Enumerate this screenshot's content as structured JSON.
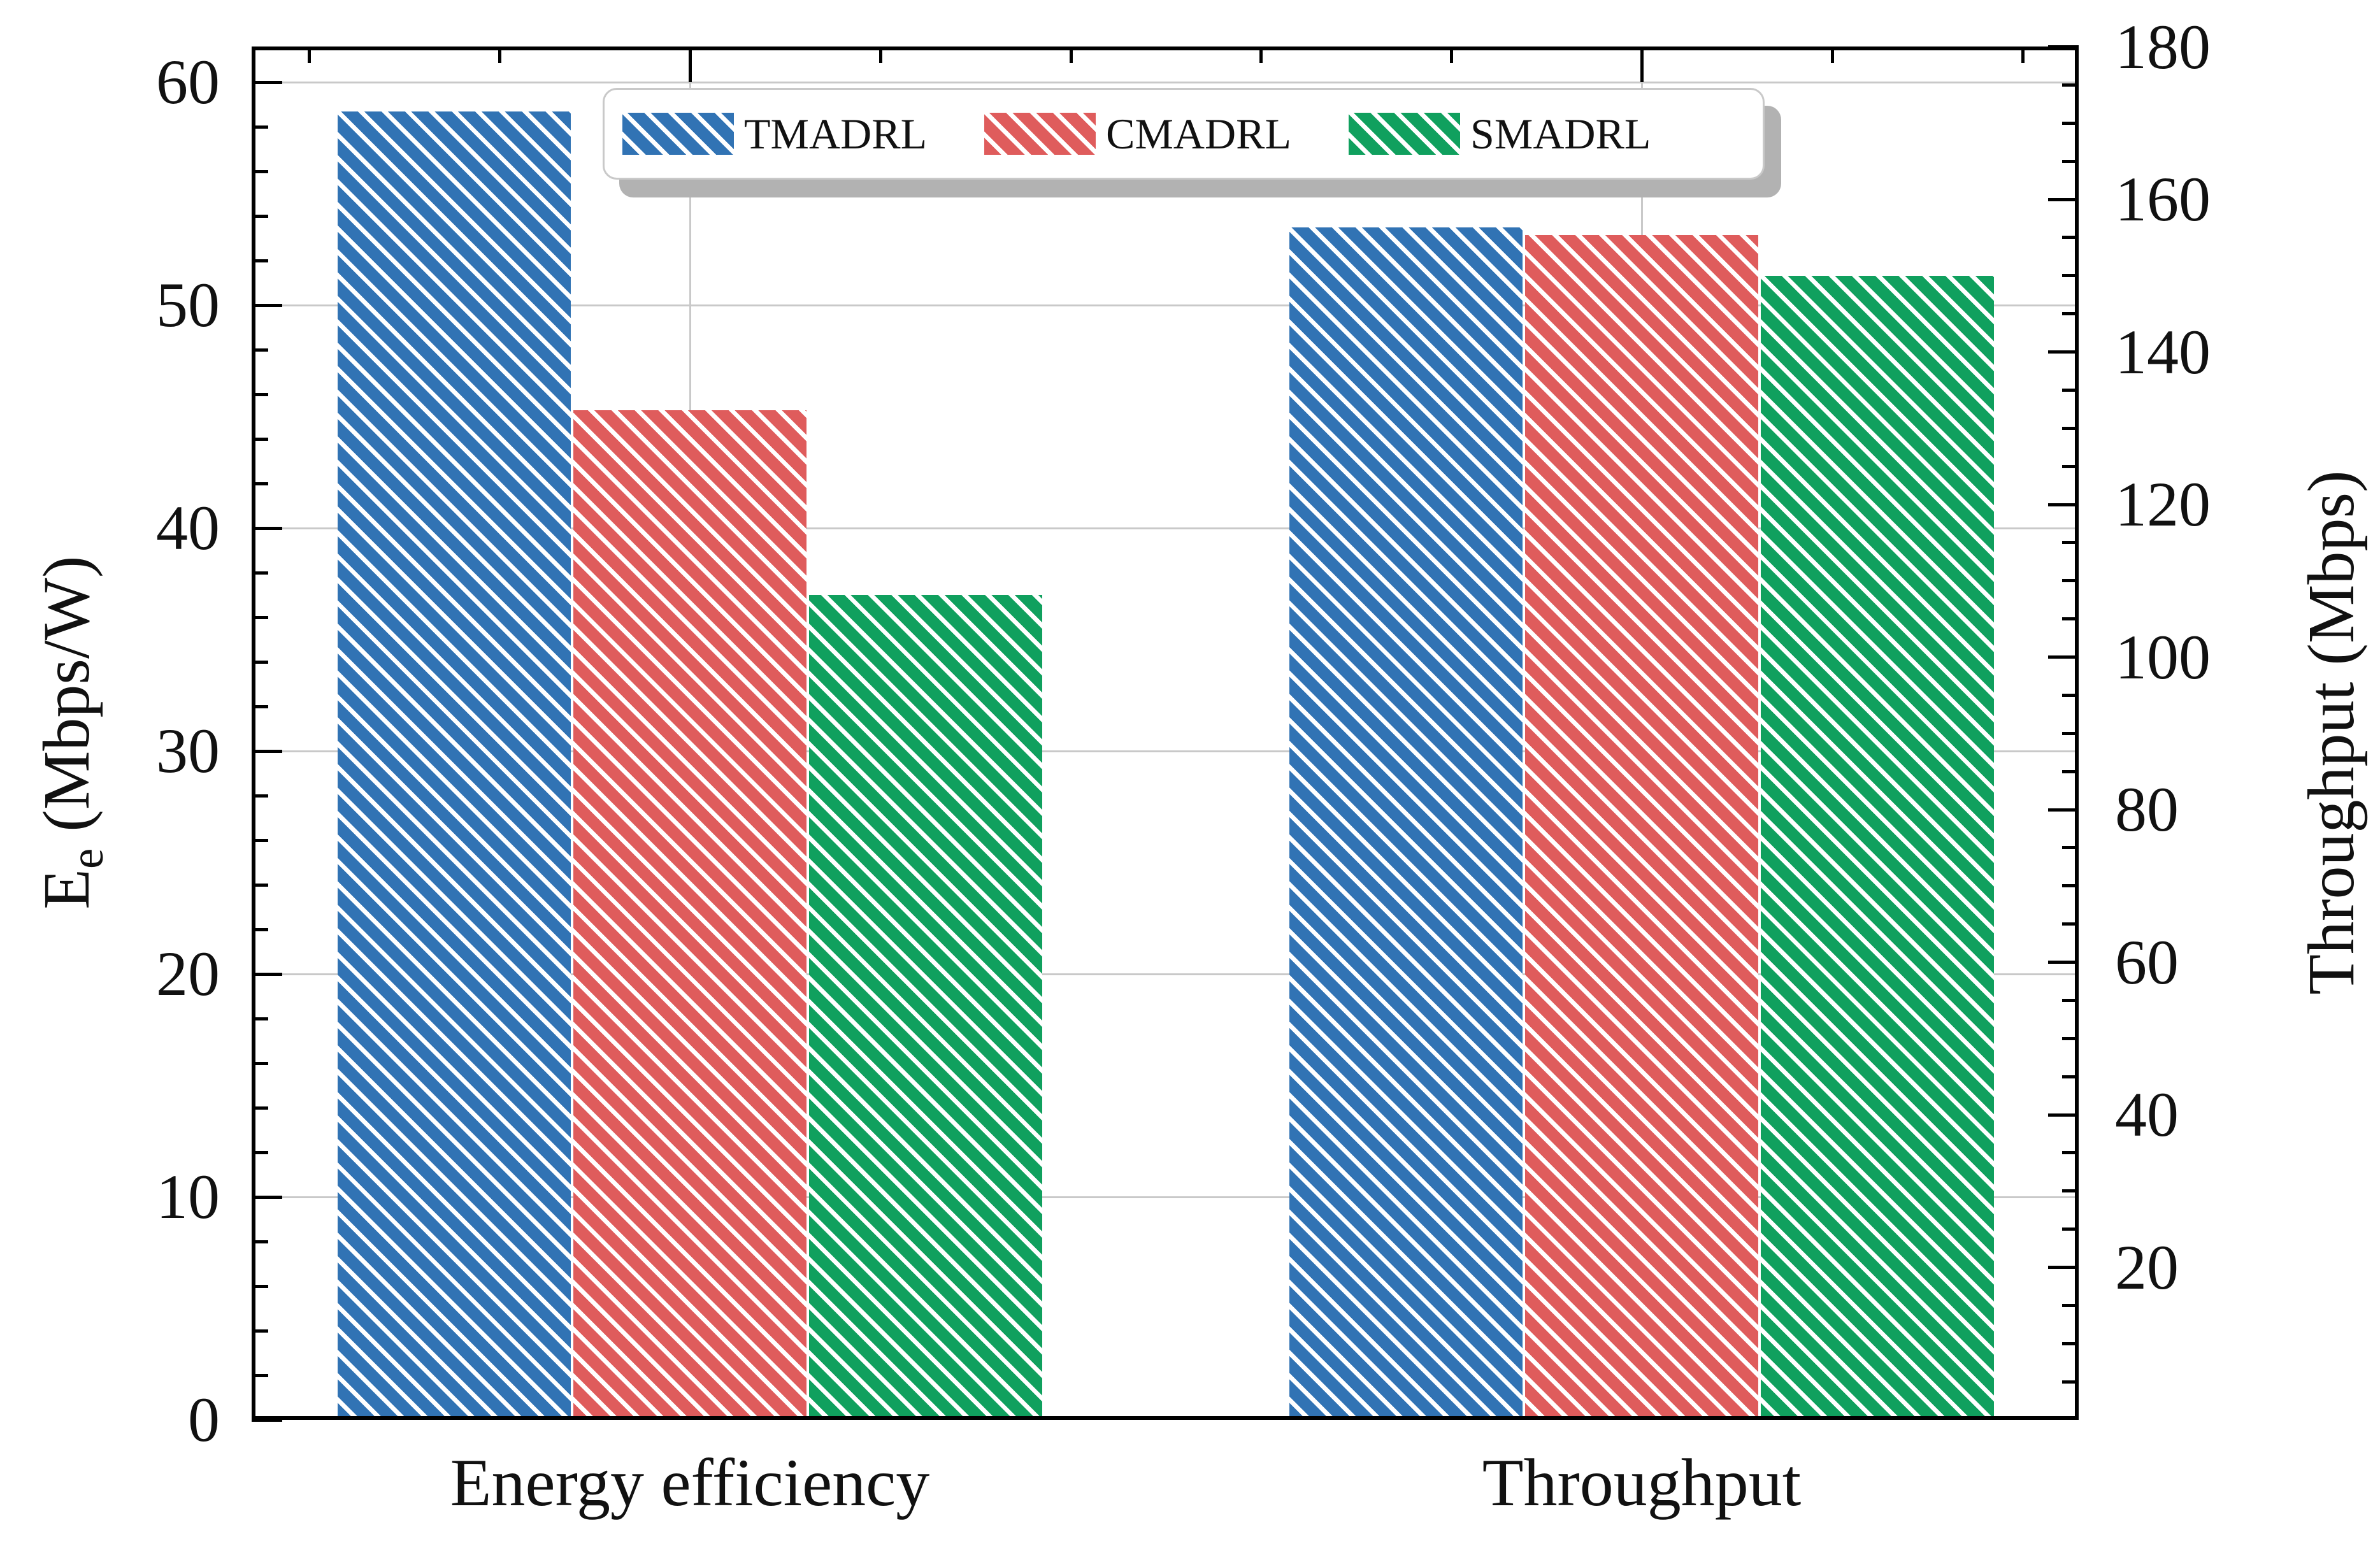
{
  "chart_data": {
    "type": "bar",
    "categories": [
      "Energy efficiency",
      "Throughput"
    ],
    "series": [
      {
        "name": "TMADRL",
        "color": "#3173B4",
        "values": [
          58.7,
          156.3
        ]
      },
      {
        "name": "CMADRL",
        "color": "#DF5C5C",
        "values": [
          45.3,
          155.3
        ]
      },
      {
        "name": "SMADRL",
        "color": "#10A05E",
        "values": [
          37.0,
          150.0
        ]
      }
    ],
    "value_units": [
      "Mbps/W",
      "Mbps"
    ],
    "axes": {
      "left": {
        "label_main": "E",
        "label_sub": "e",
        "label_rest": " (Mbps/W)",
        "ticks": [
          0,
          10,
          20,
          30,
          40,
          50,
          60
        ],
        "range": [
          0,
          61.6
        ]
      },
      "right": {
        "label": "Throughput (Mbps)",
        "ticks": [
          20,
          40,
          60,
          80,
          100,
          120,
          140,
          160,
          180
        ],
        "range": [
          0,
          180.05
        ]
      }
    },
    "legend": {
      "position": "top-center",
      "labels": [
        "TMADRL",
        "CMADRL",
        "SMADRL"
      ]
    },
    "grid": {
      "horizontal_at": [
        10,
        20,
        30,
        40,
        50,
        60
      ],
      "vertical_at_category_centers": true
    },
    "hatch": "white-diagonal-stripes-45deg",
    "colors": {
      "grid": "#c9c9c9",
      "spine": "#000000",
      "background": "#ffffff",
      "legend_shadow": "#b2b2b2",
      "text": "#111111"
    }
  }
}
